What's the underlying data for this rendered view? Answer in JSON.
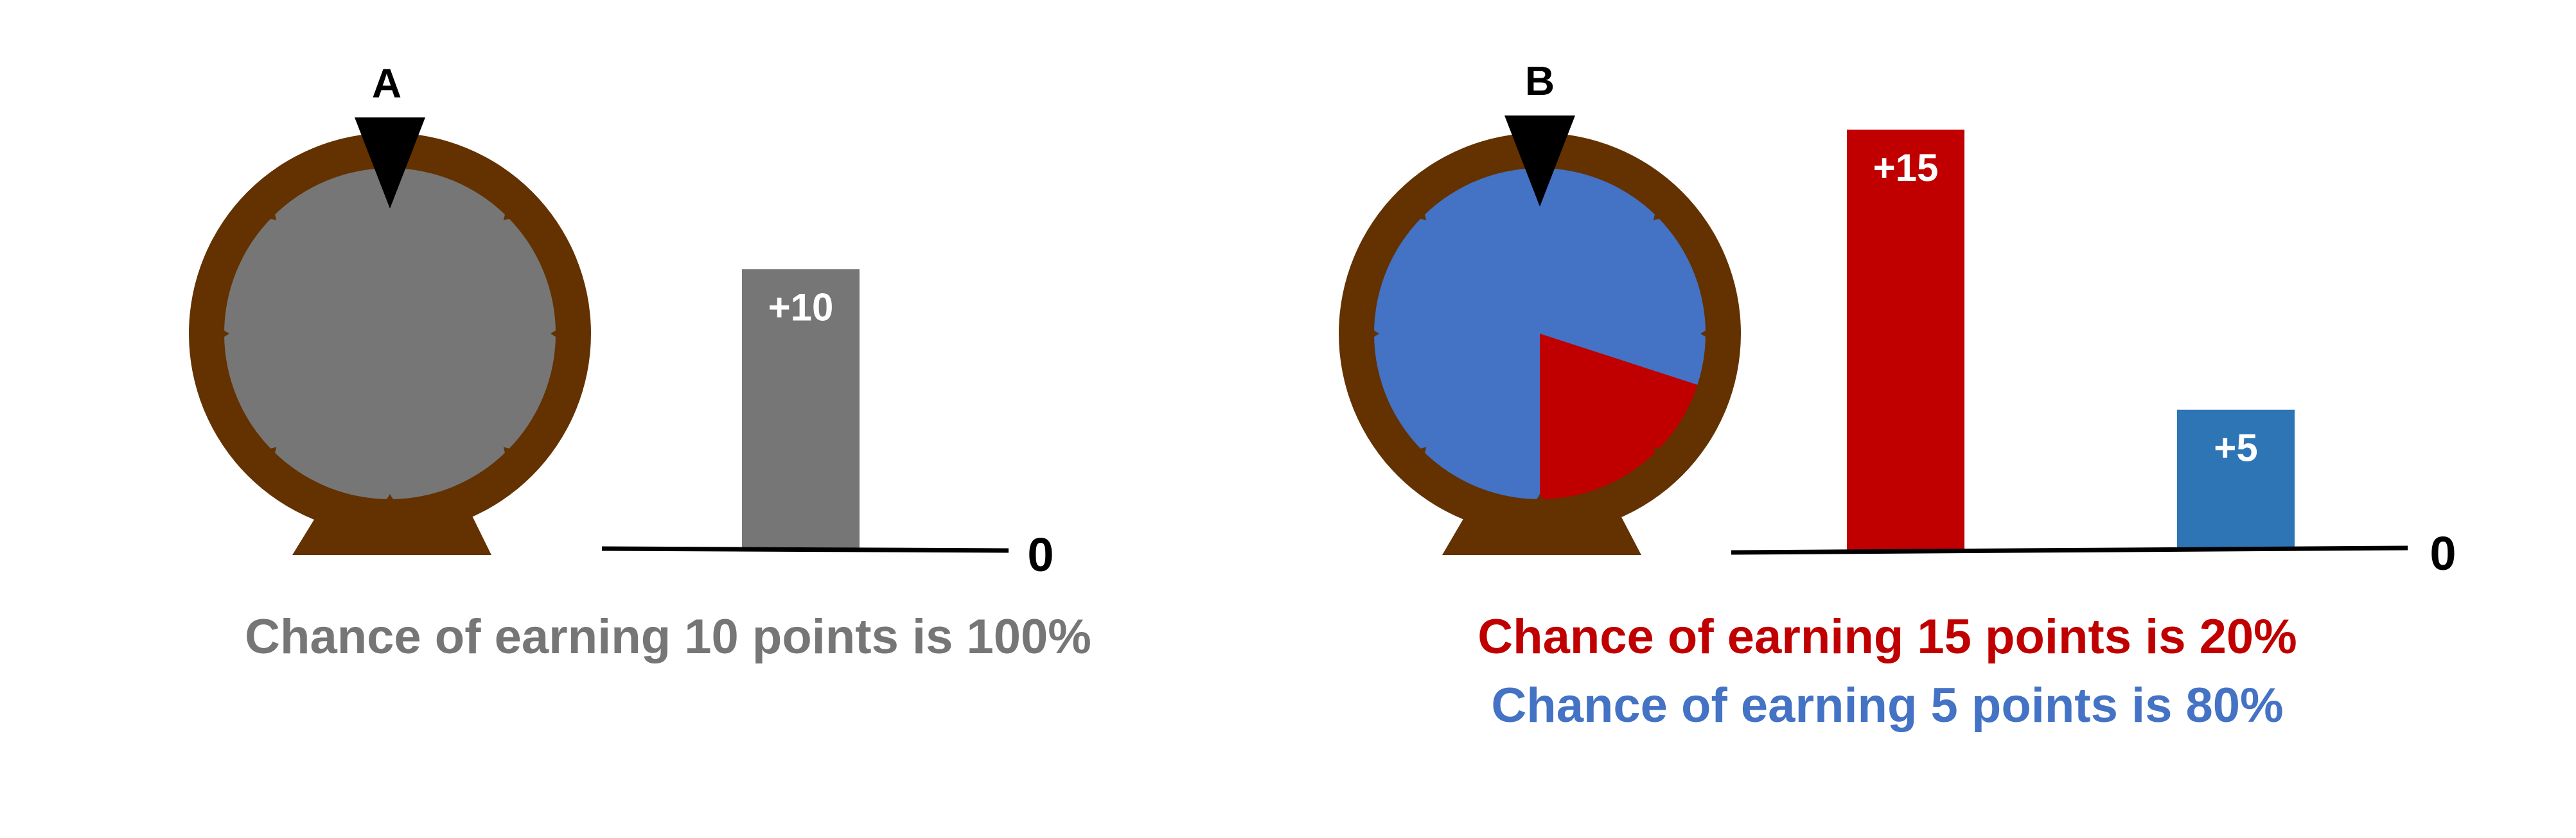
{
  "colors": {
    "wheel_rim": "#633200",
    "pointer": "#000000",
    "gray": "#767676",
    "red": "#c00000",
    "blue": "#4472c4",
    "blue_bar": "#2e75b6",
    "axis": "#000000"
  },
  "option_a": {
    "label": "A",
    "wheel": {
      "slices": [
        {
          "fraction": 1.0,
          "color": "#767676"
        }
      ]
    },
    "chart_data": {
      "type": "bar",
      "categories": [
        "+10"
      ],
      "values": [
        10
      ],
      "bar_labels": [
        "+10"
      ],
      "colors": [
        "#767676"
      ],
      "baseline_label": "0",
      "ylim": [
        0,
        15
      ]
    },
    "captions": [
      {
        "text": "Chance of earning 10 points is 100%",
        "color": "#767676"
      }
    ]
  },
  "option_b": {
    "label": "B",
    "wheel": {
      "slices": [
        {
          "fraction": 0.8,
          "color": "#4472c4"
        },
        {
          "fraction": 0.2,
          "color": "#c00000"
        }
      ]
    },
    "chart_data": {
      "type": "bar",
      "categories": [
        "+15",
        "+5"
      ],
      "values": [
        15,
        5
      ],
      "bar_labels": [
        "+15",
        "+5"
      ],
      "colors": [
        "#c00000",
        "#2e75b6"
      ],
      "baseline_label": "0",
      "ylim": [
        0,
        15
      ]
    },
    "captions": [
      {
        "text": "Chance of earning 15 points is 20%",
        "color": "#c00000"
      },
      {
        "text": "Chance of earning 5 points is 80%",
        "color": "#4472c4"
      }
    ]
  }
}
